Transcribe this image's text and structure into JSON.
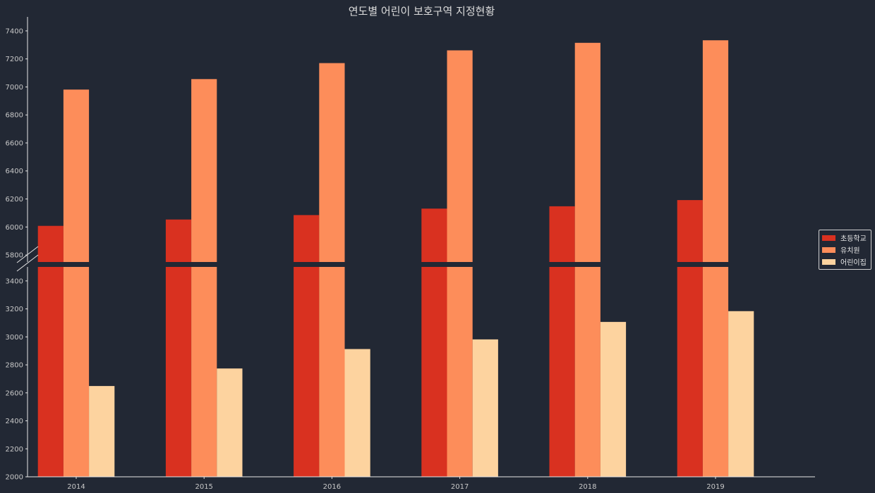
{
  "chart_data": {
    "type": "bar",
    "title": "연도별 어린이 보호구역 지정현황",
    "categories": [
      "2014",
      "2015",
      "2016",
      "2017",
      "2018",
      "2019"
    ],
    "series": [
      {
        "name": "초등학교",
        "color": "#d93120",
        "values": [
          6008,
          6053,
          6085,
          6131,
          6148,
          6192
        ]
      },
      {
        "name": "유치원",
        "color": "#fd8d5a",
        "values": [
          6981,
          7056,
          7170,
          7261,
          7315,
          7333
        ]
      },
      {
        "name": "어린이집",
        "color": "#fdd39f",
        "values": [
          2649,
          2774,
          2913,
          2982,
          3107,
          3184
        ]
      }
    ],
    "axis_break": {
      "lower_range": [
        2000,
        3500
      ],
      "upper_range": [
        5750,
        7500
      ]
    },
    "y_ticks_lower": [
      "2000",
      "2200",
      "2400",
      "2600",
      "2800",
      "3000",
      "3200",
      "3400"
    ],
    "y_ticks_upper": [
      "5800",
      "6000",
      "6200",
      "6400",
      "6600",
      "6800",
      "7000",
      "7200",
      "7400"
    ],
    "xlabel": "",
    "ylabel": "",
    "grid": false,
    "legend_position": "right"
  }
}
